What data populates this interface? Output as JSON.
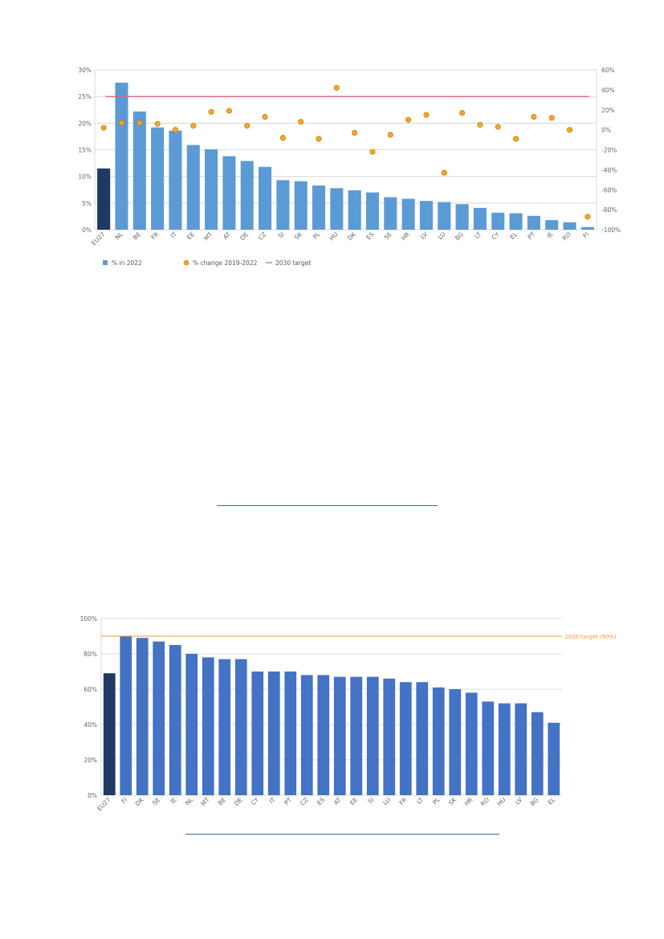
{
  "chart_data": [
    {
      "type": "bar",
      "title": "",
      "xlabel": "",
      "ylabel": "",
      "categories": [
        "EU27",
        "NL",
        "BE",
        "FR",
        "IT",
        "EE",
        "MT",
        "AT",
        "DE",
        "CZ",
        "SI",
        "SK",
        "PL",
        "HU",
        "DK",
        "ES",
        "SE",
        "HR",
        "LV",
        "LU",
        "BG",
        "LT",
        "CY",
        "EL",
        "PT",
        "IE",
        "RO",
        "FI"
      ],
      "ylim": [
        0,
        30
      ],
      "y2lim": [
        -100,
        60
      ],
      "yticks": [
        "0%",
        "5%",
        "10%",
        "15%",
        "20%",
        "25%",
        "30%"
      ],
      "y2ticks": [
        "-100%",
        "-80%",
        "-60%",
        "-40%",
        "-20%",
        "0%",
        "20%",
        "40%",
        "60%"
      ],
      "highlight_category": "EU27",
      "series": [
        {
          "name": "% in 2022",
          "kind": "bar",
          "axis": "left",
          "color": "#5b9bd5",
          "values": [
            11.5,
            27.6,
            22.2,
            19.2,
            18.6,
            15.9,
            15.1,
            13.8,
            12.9,
            11.8,
            9.3,
            9.1,
            8.3,
            7.8,
            7.4,
            7.0,
            6.1,
            5.8,
            5.4,
            5.2,
            4.8,
            4.1,
            3.2,
            3.1,
            2.6,
            1.8,
            1.4,
            0.5
          ]
        },
        {
          "name": "% change 2019-2022",
          "kind": "point",
          "axis": "right",
          "color": "#f5a623",
          "values": [
            2,
            7,
            7,
            6,
            0,
            4,
            18,
            19,
            4,
            13,
            -8,
            8,
            -9,
            42,
            -3,
            -22,
            -5,
            10,
            15,
            -43,
            17,
            5,
            3,
            -9,
            13,
            12,
            0,
            -87
          ]
        },
        {
          "name": "2030 target",
          "kind": "line",
          "axis": "left",
          "color": "#e0607a",
          "value": 25
        }
      ],
      "legend_position": "bottom-left",
      "grid": true,
      "bar_color": "#5b9bd5",
      "highlight_color": "#1f3864"
    },
    {
      "type": "bar",
      "title": "",
      "xlabel": "",
      "ylabel": "",
      "categories": [
        "EU27",
        "FI",
        "DK",
        "SE",
        "IE",
        "NL",
        "MT",
        "BE",
        "DE",
        "CY",
        "IT",
        "PT",
        "CZ",
        "ES",
        "AT",
        "EE",
        "SI",
        "LU",
        "FR",
        "LT",
        "PL",
        "SK",
        "HR",
        "RO",
        "HU",
        "LV",
        "BG",
        "EL"
      ],
      "ylim": [
        0,
        100
      ],
      "yticks": [
        "0%",
        "20%",
        "40%",
        "60%",
        "80%",
        "100%"
      ],
      "highlight_category": "EU27",
      "series": [
        {
          "name": "",
          "kind": "bar",
          "color": "#4472c4",
          "values": [
            69,
            90,
            89,
            87,
            85,
            80,
            78,
            77,
            77,
            70,
            70,
            70,
            68,
            68,
            67,
            67,
            67,
            66,
            64,
            64,
            61,
            60,
            58,
            53,
            52,
            52,
            47,
            41
          ]
        }
      ],
      "target": {
        "label": "2030 target (90%)",
        "value": 90,
        "color": "#ed9a2e"
      },
      "grid": true,
      "bar_color": "#4472c4",
      "highlight_color": "#1f3864"
    }
  ]
}
